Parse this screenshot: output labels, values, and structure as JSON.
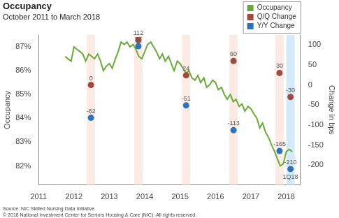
{
  "chart_data": {
    "type": "line",
    "title": "Occupancy",
    "subtitle": "October 2011 to March 2018",
    "ylabel": "Occupancy",
    "y2label": "Change in bps",
    "source": "Source: NIC Skilled Nursing Data Initiative",
    "copyright": "© 2018 National Investment Center for Seniors Housing & Care (NIC). All rights reserved.",
    "annotations": [
      "1Q18"
    ],
    "xlim": [
      2011,
      2018.4
    ],
    "xticks": [
      2011,
      2012,
      2013,
      2014,
      2015,
      2016,
      2017,
      2018
    ],
    "ylim": [
      81.2,
      87.5
    ],
    "yticks": [
      {
        "value": 82,
        "label": "82%"
      },
      {
        "value": 83,
        "label": "83%"
      },
      {
        "value": 84,
        "label": "84%"
      },
      {
        "value": 85,
        "label": "85%"
      },
      {
        "value": 86,
        "label": "86%"
      },
      {
        "value": 87,
        "label": "87%"
      }
    ],
    "y2lim": [
      -250,
      125
    ],
    "y2ticks": [
      -200,
      -150,
      -100,
      -50,
      0,
      50,
      100
    ],
    "grid": false,
    "legend": "top-right",
    "series": [
      {
        "name": "Occupancy",
        "type": "line",
        "color": "#6aaa3a",
        "line_style": "solid",
        "x": [
          2011.75,
          2011.83,
          2011.92,
          2012,
          2012.08,
          2012.17,
          2012.25,
          2012.33,
          2012.42,
          2012.5,
          2012.58,
          2012.67,
          2012.75,
          2012.83,
          2012.92,
          2013,
          2013.08,
          2013.17,
          2013.25,
          2013.33,
          2013.42,
          2013.5,
          2013.58,
          2013.67,
          2013.75,
          2013.83,
          2013.92,
          2014,
          2014.08,
          2014.17,
          2014.25,
          2014.33,
          2014.42,
          2014.5,
          2014.58,
          2014.67,
          2014.75,
          2014.83,
          2014.92,
          2015,
          2015.08,
          2015.17,
          2015.25,
          2015.33,
          2015.42,
          2015.5,
          2015.58,
          2015.67,
          2015.75,
          2015.83,
          2015.92,
          2016,
          2016.08,
          2016.17,
          2016.25,
          2016.33,
          2016.42,
          2016.5,
          2016.58,
          2016.67,
          2016.75,
          2016.83,
          2016.92,
          2017,
          2017.08,
          2017.17,
          2017.25,
          2017.33,
          2017.42,
          2017.5,
          2017.58,
          2017.67,
          2017.75,
          2017.83,
          2017.92,
          2018,
          2018.08,
          2018.17
        ],
        "values": [
          86.6,
          86.5,
          86.4,
          87.0,
          86.9,
          86.8,
          86.7,
          86.4,
          86.7,
          86.6,
          86.5,
          86.7,
          86.4,
          86.0,
          86.2,
          86.3,
          86.1,
          86.5,
          86.8,
          87.2,
          87.1,
          87.2,
          87.0,
          87.1,
          86.9,
          86.6,
          86.5,
          86.8,
          87.1,
          87.2,
          87.0,
          86.8,
          86.5,
          86.7,
          86.4,
          86.6,
          86.3,
          86.0,
          86.4,
          86.3,
          86.1,
          85.9,
          86.0,
          85.7,
          85.6,
          85.8,
          85.5,
          85.7,
          85.3,
          85.4,
          85.6,
          85.5,
          85.2,
          85.3,
          85.0,
          84.8,
          85.0,
          84.7,
          84.8,
          84.5,
          84.6,
          84.3,
          84.5,
          84.4,
          84.2,
          84.0,
          83.6,
          83.8,
          83.4,
          83.2,
          82.9,
          82.6,
          82.3,
          82.0,
          82.1,
          82.6,
          82.7,
          82.6
        ]
      },
      {
        "name": "Q/Q Change",
        "type": "scatter",
        "axis": "y2",
        "color": "#9e4b3f",
        "marker": "circle",
        "data_labels": true,
        "x": [
          2012.48,
          2013.82,
          2015.17,
          2016.51,
          2017.81,
          2018.12
        ],
        "values": [
          0,
          112,
          24,
          60,
          30,
          -30
        ]
      },
      {
        "name": "Y/Y Change",
        "type": "scatter",
        "axis": "y2",
        "color": "#2e75b6",
        "marker": "circle",
        "data_labels": true,
        "x": [
          2012.48,
          2013.82,
          2015.17,
          2016.51,
          2017.81,
          2018.12
        ],
        "values": [
          -82,
          97,
          -51,
          -113,
          -165,
          -210
        ]
      }
    ]
  }
}
